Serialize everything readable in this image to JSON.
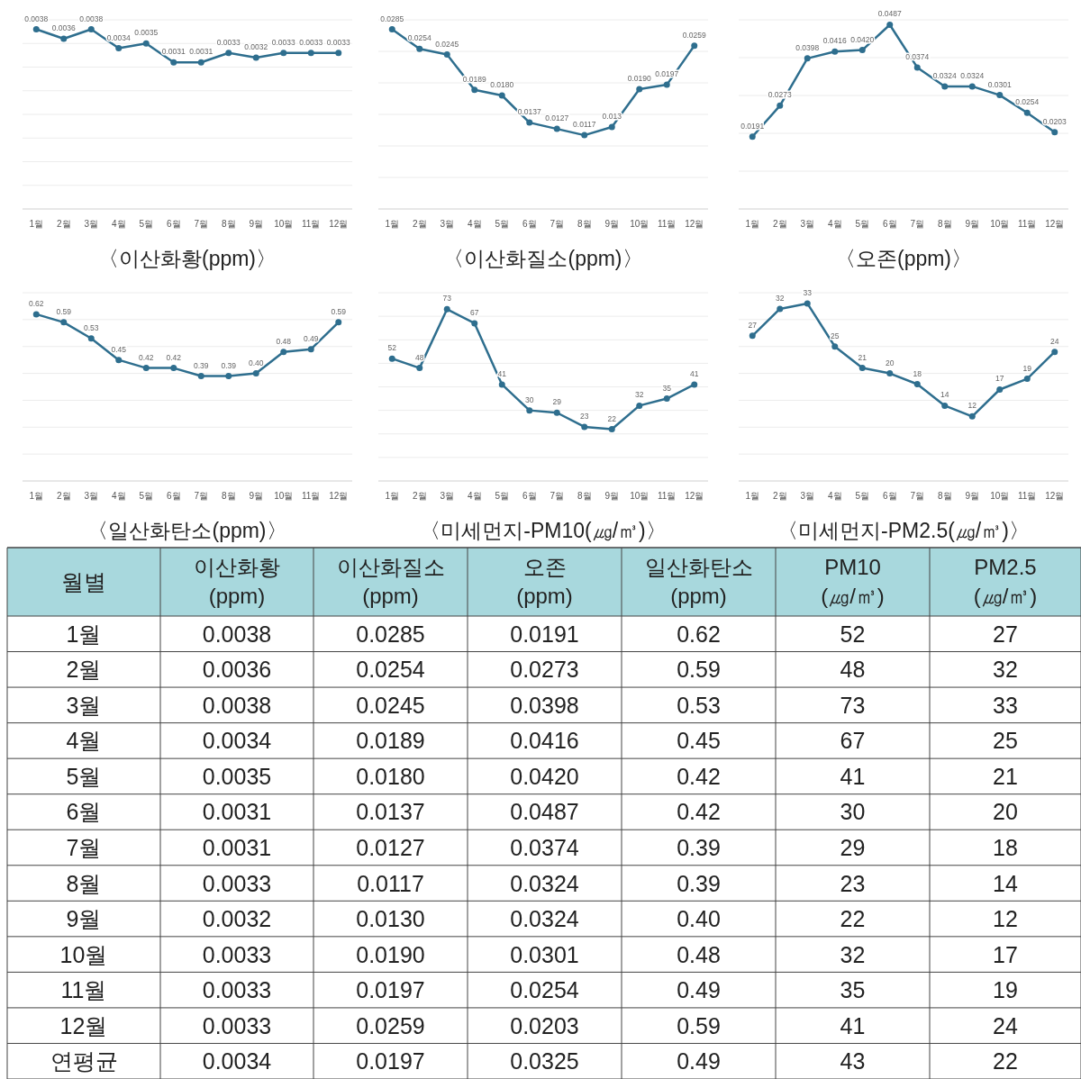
{
  "chart_data": [
    {
      "type": "line",
      "title": "〈이산화황(ppm)〉",
      "categories": [
        "1월",
        "2월",
        "3월",
        "4월",
        "5월",
        "6월",
        "7월",
        "8월",
        "9월",
        "10월",
        "11월",
        "12월"
      ],
      "series": [
        {
          "color": "#2e6e8e",
          "values": [
            0.0038,
            0.0036,
            0.0038,
            0.0034,
            0.0035,
            0.0031,
            0.0031,
            0.0033,
            0.0032,
            0.0033,
            0.0033,
            0.0033
          ],
          "value_labels": [
            "0.0038",
            "0.0036",
            "0.0038",
            "0.0034",
            "0.0035",
            "0.0031",
            "0.0031",
            "0.0033",
            "0.0032",
            "0.0033",
            "0.0033",
            "0.0033"
          ]
        }
      ],
      "marker": "circle",
      "grid": "y",
      "ylim": [
        0,
        0.004
      ],
      "yticks": [
        {
          "value": 0,
          "label": null
        },
        {
          "value": 0.0005,
          "label": null
        },
        {
          "value": 0.001,
          "label": null
        },
        {
          "value": 0.0015,
          "label": null
        },
        {
          "value": 0.002,
          "label": null
        },
        {
          "value": 0.0025,
          "label": null
        },
        {
          "value": 0.003,
          "label": null
        },
        {
          "value": 0.0035,
          "label": null
        },
        {
          "value": 0.004,
          "label": null
        }
      ]
    },
    {
      "type": "line",
      "title": "〈이산화질소(ppm)〉",
      "categories": [
        "1월",
        "2월",
        "3월",
        "4월",
        "5월",
        "6월",
        "7월",
        "8월",
        "9월",
        "10월",
        "11월",
        "12월"
      ],
      "series": [
        {
          "color": "#2e6e8e",
          "values": [
            0.0285,
            0.0254,
            0.0245,
            0.0189,
            0.018,
            0.0137,
            0.0127,
            0.0117,
            0.013,
            0.019,
            0.0197,
            0.0259
          ],
          "value_labels": [
            "0.0285",
            "0.0254",
            "0.0245",
            "0.0189",
            "0.0180",
            "0.0137",
            "0.0127",
            "0.0117",
            "0.013",
            "0.0190",
            "0.0197",
            "0.0259"
          ]
        }
      ],
      "marker": "circle",
      "grid": "y",
      "ylim": [
        0,
        0.03
      ],
      "yticks": [
        {
          "value": 0,
          "label": null
        },
        {
          "value": 0.005,
          "label": null
        },
        {
          "value": 0.01,
          "label": null
        },
        {
          "value": 0.015,
          "label": null
        },
        {
          "value": 0.02,
          "label": null
        },
        {
          "value": 0.025,
          "label": null
        },
        {
          "value": 0.03,
          "label": null
        }
      ]
    },
    {
      "type": "line",
      "title": "〈오존(ppm)〉",
      "categories": [
        "1월",
        "2월",
        "3월",
        "4월",
        "5월",
        "6월",
        "7월",
        "8월",
        "9월",
        "10월",
        "11월",
        "12월"
      ],
      "series": [
        {
          "color": "#2e6e8e",
          "values": [
            0.0191,
            0.0273,
            0.0398,
            0.0416,
            0.042,
            0.0487,
            0.0374,
            0.0324,
            0.0324,
            0.0301,
            0.0254,
            0.0203
          ],
          "value_labels": [
            "0.0191",
            "0.0273",
            "0.0398",
            "0.0416",
            "0.0420",
            "0.0487",
            "0.0374",
            "0.0324",
            "0.0324",
            "0.0301",
            "0.0254",
            "0.0203"
          ]
        }
      ],
      "marker": "circle",
      "grid": "y",
      "ylim": [
        0,
        0.05
      ],
      "yticks": [
        {
          "value": 0,
          "label": null
        },
        {
          "value": 0.01,
          "label": null
        },
        {
          "value": 0.02,
          "label": null
        },
        {
          "value": 0.03,
          "label": null
        },
        {
          "value": 0.04,
          "label": null
        },
        {
          "value": 0.05,
          "label": null
        }
      ]
    },
    {
      "type": "line",
      "title": "〈일산화탄소(ppm)〉",
      "categories": [
        "1월",
        "2월",
        "3월",
        "4월",
        "5월",
        "6월",
        "7월",
        "8월",
        "9월",
        "10월",
        "11월",
        "12월"
      ],
      "series": [
        {
          "color": "#2e6e8e",
          "values": [
            0.62,
            0.59,
            0.53,
            0.45,
            0.42,
            0.42,
            0.39,
            0.39,
            0.4,
            0.48,
            0.49,
            0.59
          ],
          "value_labels": [
            "0.62",
            "0.59",
            "0.53",
            "0.45",
            "0.42",
            "0.42",
            "0.39",
            "0.39",
            "0.40",
            "0.48",
            "0.49",
            "0.59"
          ]
        }
      ],
      "marker": "circle",
      "grid": "y",
      "ylim": [
        0,
        0.7
      ],
      "yticks": [
        {
          "value": 0,
          "label": null
        },
        {
          "value": 0.1,
          "label": null
        },
        {
          "value": 0.2,
          "label": null
        },
        {
          "value": 0.3,
          "label": null
        },
        {
          "value": 0.4,
          "label": null
        },
        {
          "value": 0.5,
          "label": null
        },
        {
          "value": 0.6,
          "label": null
        },
        {
          "value": 0.7,
          "label": null
        }
      ]
    },
    {
      "type": "line",
      "title": "〈미세먼지-PM10(㎍/㎥)〉",
      "categories": [
        "1월",
        "2월",
        "3월",
        "4월",
        "5월",
        "6월",
        "7월",
        "8월",
        "9월",
        "10월",
        "11월",
        "12월"
      ],
      "series": [
        {
          "color": "#2e6e8e",
          "values": [
            52,
            48,
            73,
            67,
            41,
            30,
            29,
            23,
            22,
            32,
            35,
            41
          ],
          "value_labels": [
            "52",
            "48",
            "73",
            "67",
            "41",
            "30",
            "29",
            "23",
            "22",
            "32",
            "35",
            "41"
          ]
        }
      ],
      "marker": "circle",
      "grid": "y",
      "ylim": [
        0,
        80
      ],
      "yticks": [
        {
          "value": 0,
          "label": null
        },
        {
          "value": 10,
          "label": null
        },
        {
          "value": 20,
          "label": null
        },
        {
          "value": 30,
          "label": null
        },
        {
          "value": 40,
          "label": null
        },
        {
          "value": 50,
          "label": null
        },
        {
          "value": 60,
          "label": null
        },
        {
          "value": 70,
          "label": null
        },
        {
          "value": 80,
          "label": null
        }
      ]
    },
    {
      "type": "line",
      "title": "〈미세먼지-PM2.5(㎍/㎥)〉",
      "categories": [
        "1월",
        "2월",
        "3월",
        "4월",
        "5월",
        "6월",
        "7월",
        "8월",
        "9월",
        "10월",
        "11월",
        "12월"
      ],
      "series": [
        {
          "color": "#2e6e8e",
          "values": [
            27,
            32,
            33,
            25,
            21,
            20,
            18,
            14,
            12,
            17,
            19,
            24
          ],
          "value_labels": [
            "27",
            "32",
            "33",
            "25",
            "21",
            "20",
            "18",
            "14",
            "12",
            "17",
            "19",
            "24"
          ]
        }
      ],
      "marker": "circle",
      "grid": "y",
      "ylim": [
        0,
        35
      ],
      "yticks": [
        {
          "value": 0,
          "label": null
        },
        {
          "value": 5,
          "label": null
        },
        {
          "value": 10,
          "label": null
        },
        {
          "value": 15,
          "label": null
        },
        {
          "value": 20,
          "label": null
        },
        {
          "value": 25,
          "label": null
        },
        {
          "value": 30,
          "label": null
        },
        {
          "value": 35,
          "label": null
        }
      ]
    },
    {
      "type": "heatmap",
      "ylabel": "월별",
      "categories": [
        "이산화황\n(ppm)",
        "이산화질소\n(ppm)",
        "오존\n(ppm)",
        "일산화탄소\n(ppm)",
        "PM10\n(㎍/㎥)",
        "PM2.5\n(㎍/㎥)"
      ],
      "y_categories": [
        "1월",
        "2월",
        "3월",
        "4월",
        "5월",
        "6월",
        "7월",
        "8월",
        "9월",
        "10월",
        "11월",
        "12월",
        "연평균"
      ],
      "cells": [
        [
          0.0038,
          0.0285,
          0.0191,
          0.62,
          52,
          27
        ],
        [
          0.0036,
          0.0254,
          0.0273,
          0.59,
          48,
          32
        ],
        [
          0.0038,
          0.0245,
          0.0398,
          0.53,
          73,
          33
        ],
        [
          0.0034,
          0.0189,
          0.0416,
          0.45,
          67,
          25
        ],
        [
          0.0035,
          0.018,
          0.042,
          0.42,
          41,
          21
        ],
        [
          0.0031,
          0.0137,
          0.0487,
          0.42,
          30,
          20
        ],
        [
          0.0031,
          0.0127,
          0.0374,
          0.39,
          29,
          18
        ],
        [
          0.0033,
          0.0117,
          0.0324,
          0.39,
          23,
          14
        ],
        [
          0.0032,
          0.013,
          0.0324,
          0.4,
          22,
          12
        ],
        [
          0.0033,
          0.019,
          0.0301,
          0.48,
          32,
          17
        ],
        [
          0.0033,
          0.0197,
          0.0254,
          0.49,
          35,
          19
        ],
        [
          0.0033,
          0.0259,
          0.0203,
          0.59,
          41,
          24
        ],
        [
          0.0034,
          0.0197,
          0.0325,
          0.49,
          43,
          22
        ]
      ],
      "cell_labels": [
        [
          "0.0038",
          "0.0285",
          "0.0191",
          "0.62",
          "52",
          "27"
        ],
        [
          "0.0036",
          "0.0254",
          "0.0273",
          "0.59",
          "48",
          "32"
        ],
        [
          "0.0038",
          "0.0245",
          "0.0398",
          "0.53",
          "73",
          "33"
        ],
        [
          "0.0034",
          "0.0189",
          "0.0416",
          "0.45",
          "67",
          "25"
        ],
        [
          "0.0035",
          "0.0180",
          "0.0420",
          "0.42",
          "41",
          "21"
        ],
        [
          "0.0031",
          "0.0137",
          "0.0487",
          "0.42",
          "30",
          "20"
        ],
        [
          "0.0031",
          "0.0127",
          "0.0374",
          "0.39",
          "29",
          "18"
        ],
        [
          "0.0033",
          "0.0117",
          "0.0324",
          "0.39",
          "23",
          "14"
        ],
        [
          "0.0032",
          "0.0130",
          "0.0324",
          "0.40",
          "22",
          "12"
        ],
        [
          "0.0033",
          "0.0190",
          "0.0301",
          "0.48",
          "32",
          "17"
        ],
        [
          "0.0033",
          "0.0197",
          "0.0254",
          "0.49",
          "35",
          "19"
        ],
        [
          "0.0033",
          "0.0259",
          "0.0203",
          "0.59",
          "41",
          "24"
        ],
        [
          "0.0034",
          "0.0197",
          "0.0325",
          "0.49",
          "43",
          "22"
        ]
      ]
    }
  ]
}
